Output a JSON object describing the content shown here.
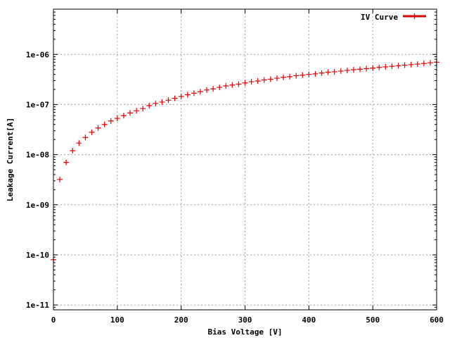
{
  "chart_data": {
    "type": "scatter",
    "title": "",
    "xlabel": "Bias Voltage [V]",
    "ylabel": "Leakage Current[A]",
    "xlim": [
      0,
      600
    ],
    "ylim": [
      8e-12,
      8e-06
    ],
    "yscale": "log",
    "grid": true,
    "legend_position": "top-right",
    "x_ticks": [
      0,
      100,
      200,
      300,
      400,
      500,
      600
    ],
    "x_tick_labels": [
      "0",
      "100",
      "200",
      "300",
      "400",
      "500",
      "600"
    ],
    "y_ticks": [
      1e-11,
      1e-10,
      1e-09,
      1e-08,
      1e-07,
      1e-06
    ],
    "y_tick_labels": [
      "1e-11",
      "1e-10",
      "1e-09",
      "1e-08",
      "1e-07",
      "1e-06"
    ],
    "series": [
      {
        "name": "IV Curve",
        "color": "#e00000",
        "marker": "plus",
        "x": [
          0,
          10,
          20,
          30,
          40,
          50,
          60,
          70,
          80,
          90,
          100,
          110,
          120,
          130,
          140,
          150,
          160,
          170,
          180,
          190,
          200,
          210,
          220,
          230,
          240,
          250,
          260,
          270,
          280,
          290,
          300,
          310,
          320,
          330,
          340,
          350,
          360,
          370,
          380,
          390,
          400,
          410,
          420,
          430,
          440,
          450,
          460,
          470,
          480,
          490,
          500,
          510,
          520,
          530,
          540,
          550,
          560,
          570,
          580,
          590,
          600
        ],
        "y": [
          8e-11,
          3.2e-09,
          7e-09,
          1.2e-08,
          1.7e-08,
          2.2e-08,
          2.8e-08,
          3.4e-08,
          4e-08,
          4.7e-08,
          5.3e-08,
          6e-08,
          6.8e-08,
          7.5e-08,
          8.3e-08,
          9.5e-08,
          1.05e-07,
          1.12e-07,
          1.22e-07,
          1.33e-07,
          1.45e-07,
          1.57e-07,
          1.68e-07,
          1.8e-07,
          1.95e-07,
          2.05e-07,
          2.2e-07,
          2.35e-07,
          2.45e-07,
          2.55e-07,
          2.7e-07,
          2.85e-07,
          2.95e-07,
          3.1e-07,
          3.2e-07,
          3.35e-07,
          3.5e-07,
          3.6e-07,
          3.75e-07,
          3.85e-07,
          4e-07,
          4.1e-07,
          4.25e-07,
          4.4e-07,
          4.5e-07,
          4.65e-07,
          4.8e-07,
          4.95e-07,
          5.05e-07,
          5.2e-07,
          5.35e-07,
          5.5e-07,
          5.65e-07,
          5.8e-07,
          5.95e-07,
          6.1e-07,
          6.25e-07,
          6.4e-07,
          6.6e-07,
          6.8e-07,
          7e-07
        ]
      }
    ]
  }
}
